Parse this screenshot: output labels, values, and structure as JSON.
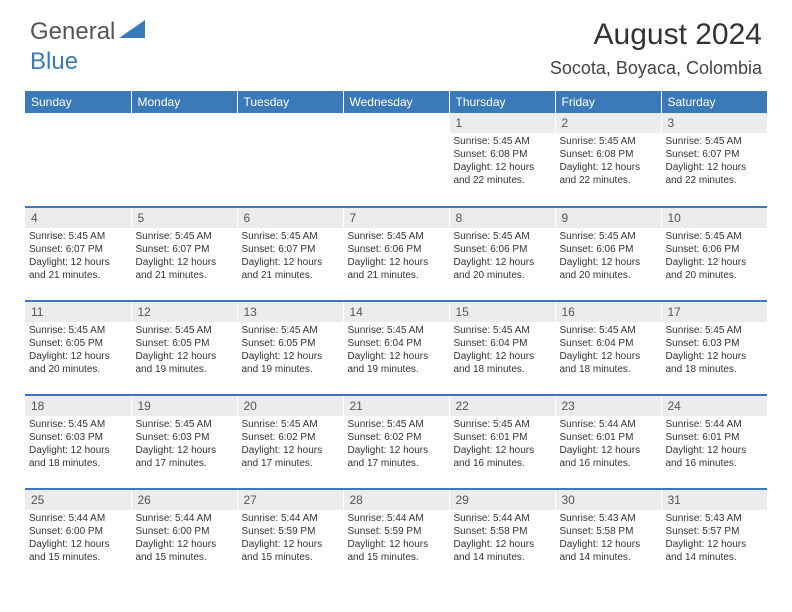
{
  "logo": {
    "general": "General",
    "blue": "Blue"
  },
  "title": "August 2024",
  "location": "Socota, Boyaca, Colombia",
  "colors": {
    "brand": "#3a7ab8",
    "daybg": "#ececec",
    "text": "#333333",
    "bg": "#ffffff"
  },
  "daysOfWeek": [
    "Sunday",
    "Monday",
    "Tuesday",
    "Wednesday",
    "Thursday",
    "Friday",
    "Saturday"
  ],
  "startWeekday": 4,
  "days": [
    {
      "n": 1,
      "sr": "5:45 AM",
      "ss": "6:08 PM",
      "dl": "12 hours and 22 minutes."
    },
    {
      "n": 2,
      "sr": "5:45 AM",
      "ss": "6:08 PM",
      "dl": "12 hours and 22 minutes."
    },
    {
      "n": 3,
      "sr": "5:45 AM",
      "ss": "6:07 PM",
      "dl": "12 hours and 22 minutes."
    },
    {
      "n": 4,
      "sr": "5:45 AM",
      "ss": "6:07 PM",
      "dl": "12 hours and 21 minutes."
    },
    {
      "n": 5,
      "sr": "5:45 AM",
      "ss": "6:07 PM",
      "dl": "12 hours and 21 minutes."
    },
    {
      "n": 6,
      "sr": "5:45 AM",
      "ss": "6:07 PM",
      "dl": "12 hours and 21 minutes."
    },
    {
      "n": 7,
      "sr": "5:45 AM",
      "ss": "6:06 PM",
      "dl": "12 hours and 21 minutes."
    },
    {
      "n": 8,
      "sr": "5:45 AM",
      "ss": "6:06 PM",
      "dl": "12 hours and 20 minutes."
    },
    {
      "n": 9,
      "sr": "5:45 AM",
      "ss": "6:06 PM",
      "dl": "12 hours and 20 minutes."
    },
    {
      "n": 10,
      "sr": "5:45 AM",
      "ss": "6:06 PM",
      "dl": "12 hours and 20 minutes."
    },
    {
      "n": 11,
      "sr": "5:45 AM",
      "ss": "6:05 PM",
      "dl": "12 hours and 20 minutes."
    },
    {
      "n": 12,
      "sr": "5:45 AM",
      "ss": "6:05 PM",
      "dl": "12 hours and 19 minutes."
    },
    {
      "n": 13,
      "sr": "5:45 AM",
      "ss": "6:05 PM",
      "dl": "12 hours and 19 minutes."
    },
    {
      "n": 14,
      "sr": "5:45 AM",
      "ss": "6:04 PM",
      "dl": "12 hours and 19 minutes."
    },
    {
      "n": 15,
      "sr": "5:45 AM",
      "ss": "6:04 PM",
      "dl": "12 hours and 18 minutes."
    },
    {
      "n": 16,
      "sr": "5:45 AM",
      "ss": "6:04 PM",
      "dl": "12 hours and 18 minutes."
    },
    {
      "n": 17,
      "sr": "5:45 AM",
      "ss": "6:03 PM",
      "dl": "12 hours and 18 minutes."
    },
    {
      "n": 18,
      "sr": "5:45 AM",
      "ss": "6:03 PM",
      "dl": "12 hours and 18 minutes."
    },
    {
      "n": 19,
      "sr": "5:45 AM",
      "ss": "6:03 PM",
      "dl": "12 hours and 17 minutes."
    },
    {
      "n": 20,
      "sr": "5:45 AM",
      "ss": "6:02 PM",
      "dl": "12 hours and 17 minutes."
    },
    {
      "n": 21,
      "sr": "5:45 AM",
      "ss": "6:02 PM",
      "dl": "12 hours and 17 minutes."
    },
    {
      "n": 22,
      "sr": "5:45 AM",
      "ss": "6:01 PM",
      "dl": "12 hours and 16 minutes."
    },
    {
      "n": 23,
      "sr": "5:44 AM",
      "ss": "6:01 PM",
      "dl": "12 hours and 16 minutes."
    },
    {
      "n": 24,
      "sr": "5:44 AM",
      "ss": "6:01 PM",
      "dl": "12 hours and 16 minutes."
    },
    {
      "n": 25,
      "sr": "5:44 AM",
      "ss": "6:00 PM",
      "dl": "12 hours and 15 minutes."
    },
    {
      "n": 26,
      "sr": "5:44 AM",
      "ss": "6:00 PM",
      "dl": "12 hours and 15 minutes."
    },
    {
      "n": 27,
      "sr": "5:44 AM",
      "ss": "5:59 PM",
      "dl": "12 hours and 15 minutes."
    },
    {
      "n": 28,
      "sr": "5:44 AM",
      "ss": "5:59 PM",
      "dl": "12 hours and 15 minutes."
    },
    {
      "n": 29,
      "sr": "5:44 AM",
      "ss": "5:58 PM",
      "dl": "12 hours and 14 minutes."
    },
    {
      "n": 30,
      "sr": "5:43 AM",
      "ss": "5:58 PM",
      "dl": "12 hours and 14 minutes."
    },
    {
      "n": 31,
      "sr": "5:43 AM",
      "ss": "5:57 PM",
      "dl": "12 hours and 14 minutes."
    }
  ],
  "labels": {
    "sunrise": "Sunrise:",
    "sunset": "Sunset:",
    "daylight": "Daylight:"
  }
}
